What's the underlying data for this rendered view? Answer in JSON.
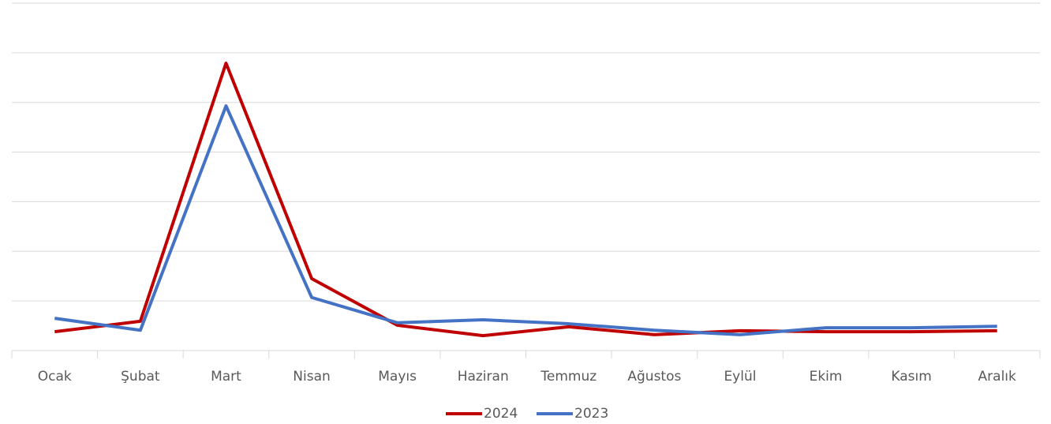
{
  "chart_data": {
    "type": "line",
    "categories": [
      "Ocak",
      "Şubat",
      "Mart",
      "Nisan",
      "Mayıs",
      "Haziran",
      "Temmuz",
      "Ağustos",
      "Eylül",
      "Ekim",
      "Kasım",
      "Aralık"
    ],
    "series": [
      {
        "name": "2024",
        "color": "#c00000",
        "values": [
          0.38,
          0.59,
          5.79,
          1.45,
          0.51,
          0.3,
          0.48,
          0.32,
          0.4,
          0.38,
          0.38,
          0.4
        ]
      },
      {
        "name": "2023",
        "color": "#4472c4",
        "values": [
          0.65,
          0.41,
          4.93,
          1.07,
          0.56,
          0.62,
          0.54,
          0.41,
          0.32,
          0.46,
          0.46,
          0.49
        ]
      }
    ],
    "ylim": [
      0,
      7
    ],
    "yticks": [
      0,
      1,
      2,
      3,
      4,
      5,
      6,
      7
    ],
    "grid": true,
    "legend": "bottom"
  }
}
